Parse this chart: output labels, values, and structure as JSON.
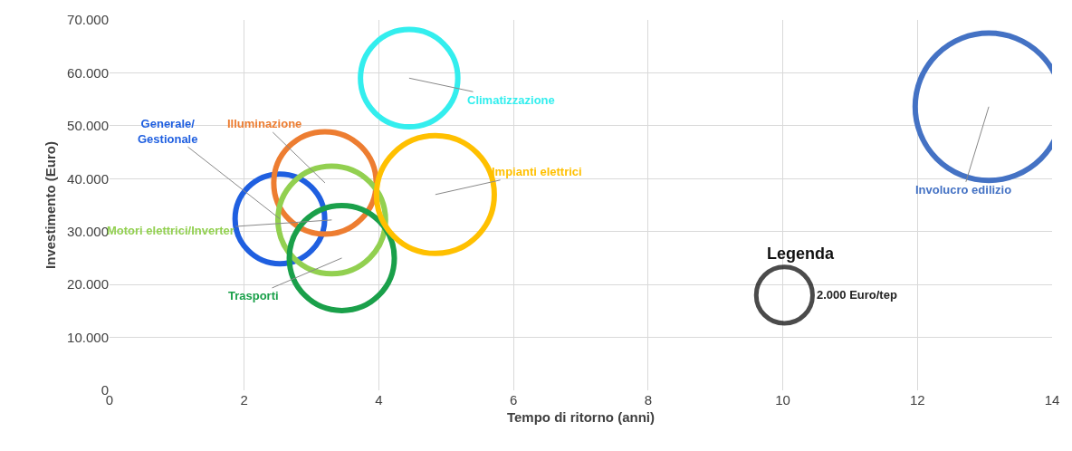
{
  "chart_data": {
    "type": "bubble",
    "xlabel": "Tempo di ritorno (anni)",
    "ylabel": "Investimento (Euro)",
    "series": [
      {
        "name": "Generale/\nGestionale",
        "color": "#1f5fe0",
        "x": [
          2.53
        ],
        "values": [
          32400
        ],
        "sizes": [
          5060
        ]
      },
      {
        "name": "Illuminazione",
        "color": "#ed7d31",
        "x": [
          3.2
        ],
        "values": [
          39200
        ],
        "sizes": [
          6610
        ]
      },
      {
        "name": "Motori elettrici/Inverter",
        "color": "#92d050",
        "x": [
          3.3
        ],
        "values": [
          32200
        ],
        "sizes": [
          7290
        ]
      },
      {
        "name": "Trasporti",
        "color": "#1aa04a",
        "x": [
          3.45
        ],
        "values": [
          25000
        ],
        "sizes": [
          6950
        ]
      },
      {
        "name": "Climatizzazione",
        "color": "#33eeee",
        "x": [
          4.45
        ],
        "values": [
          59000
        ],
        "sizes": [
          5970
        ]
      },
      {
        "name": "Impianti elettrici",
        "color": "#ffc000",
        "x": [
          4.84
        ],
        "values": [
          37000
        ],
        "sizes": [
          8740
        ]
      },
      {
        "name": "Involucro edilizio",
        "color": "#4472c4",
        "x": [
          13.06
        ],
        "values": [
          53600
        ],
        "sizes": [
          13660
        ]
      }
    ],
    "legend_title": "Legenda",
    "size_legend": [
      {
        "value": 2000,
        "label": "2.000 Euro/tep"
      }
    ],
    "xlim": [
      0,
      14
    ],
    "xticks": [
      0,
      2,
      4,
      6,
      8,
      10,
      12,
      14
    ],
    "ylim": [
      0,
      70000
    ],
    "yticks": [
      {
        "value": 0,
        "label": "0"
      },
      {
        "value": 10000,
        "label": "10.000"
      },
      {
        "value": 20000,
        "label": "20.000"
      },
      {
        "value": 30000,
        "label": "30.000"
      },
      {
        "value": 40000,
        "label": "40.000"
      },
      {
        "value": 50000,
        "label": "50.000"
      },
      {
        "value": 60000,
        "label": "60.000"
      },
      {
        "value": 70000,
        "label": "70.000"
      }
    ],
    "grid": true
  }
}
